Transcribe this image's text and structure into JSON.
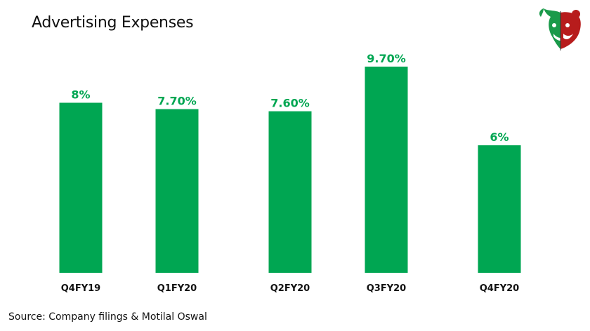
{
  "title": "Advertising Expenses",
  "source": "Source: Company filings & Motilal Oswal",
  "colors": {
    "bar": "#00A652",
    "value_label": "#00A652",
    "text": "#111111",
    "logo_green": "#1a9a4a",
    "logo_red": "#b71c1c"
  },
  "logo": {
    "icon": "bull-bear-logo-icon"
  },
  "chart_data": {
    "type": "bar",
    "title": "Advertising Expenses",
    "categories": [
      "Q4FY19",
      "Q1FY20",
      "Q2FY20",
      "Q3FY20",
      "Q4FY20"
    ],
    "values": [
      8,
      7.7,
      7.6,
      9.7,
      6
    ],
    "value_labels": [
      "8%",
      "7.70%",
      "7.60%",
      "9.70%",
      "6%"
    ],
    "unit": "%",
    "xlabel": "",
    "ylabel": "",
    "ylim": [
      0,
      10.5
    ],
    "grid": false,
    "legend": "none",
    "y_axis_visible": false
  }
}
